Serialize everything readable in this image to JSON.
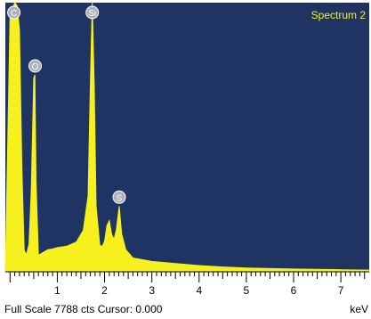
{
  "chart_data": {
    "type": "area",
    "title": "Spectrum 2",
    "xlabel": "keV",
    "xlim": [
      -0.1,
      7.6
    ],
    "ylim": [
      0,
      7788
    ],
    "x_ticks": [
      "1",
      "2",
      "3",
      "4",
      "5",
      "6",
      "7"
    ],
    "x": [
      -0.1,
      0.0,
      0.1,
      0.15,
      0.2,
      0.25,
      0.3,
      0.35,
      0.4,
      0.45,
      0.5,
      0.525,
      0.55,
      0.6,
      0.7,
      0.8,
      0.9,
      1.0,
      1.2,
      1.4,
      1.55,
      1.65,
      1.7,
      1.74,
      1.78,
      1.82,
      1.9,
      1.95,
      2.0,
      2.05,
      2.1,
      2.15,
      2.2,
      2.25,
      2.31,
      2.36,
      2.45,
      2.6,
      3.0,
      3.5,
      4.0,
      4.5,
      5.0,
      6.0,
      7.0,
      7.6
    ],
    "values": [
      0,
      7400,
      7788,
      7700,
      7000,
      3000,
      620,
      500,
      800,
      2400,
      5600,
      5700,
      2600,
      480,
      560,
      640,
      660,
      700,
      740,
      860,
      1200,
      2200,
      5500,
      7788,
      5400,
      1900,
      760,
      740,
      880,
      1340,
      1480,
      1080,
      940,
      1220,
      1900,
      1100,
      640,
      400,
      300,
      240,
      180,
      140,
      110,
      80,
      60,
      50
    ],
    "peaks": [
      {
        "label": "C",
        "x": 0.08,
        "y": 7788
      },
      {
        "label": "O",
        "x": 0.53,
        "y": 5700
      },
      {
        "label": "Si",
        "x": 1.74,
        "y": 7788
      },
      {
        "label": "S",
        "x": 2.31,
        "y": 1900
      }
    ],
    "footer": "Full Scale 7788 cts Cursor: 0.000"
  },
  "colors": {
    "background": "#1f3462",
    "fill": "#f5f01e",
    "title": "#f5f01e",
    "axis": "#000000",
    "marker": "#aab0bd"
  }
}
